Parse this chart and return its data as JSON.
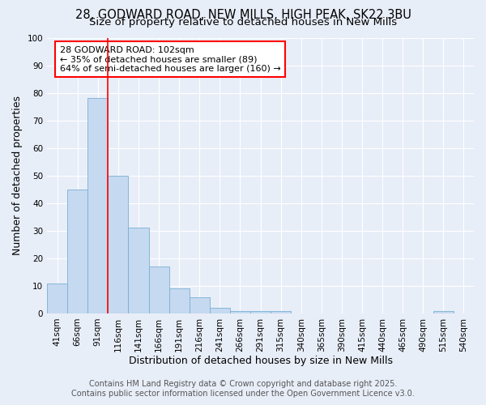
{
  "title": "28, GODWARD ROAD, NEW MILLS, HIGH PEAK, SK22 3BU",
  "subtitle": "Size of property relative to detached houses in New Mills",
  "xlabel": "Distribution of detached houses by size in New Mills",
  "ylabel": "Number of detached properties",
  "bins": [
    "41sqm",
    "66sqm",
    "91sqm",
    "116sqm",
    "141sqm",
    "166sqm",
    "191sqm",
    "216sqm",
    "241sqm",
    "266sqm",
    "291sqm",
    "315sqm",
    "340sqm",
    "365sqm",
    "390sqm",
    "415sqm",
    "440sqm",
    "465sqm",
    "490sqm",
    "515sqm",
    "540sqm"
  ],
  "values": [
    11,
    45,
    78,
    50,
    31,
    17,
    9,
    6,
    2,
    1,
    1,
    1,
    0,
    0,
    0,
    0,
    0,
    0,
    0,
    1,
    0
  ],
  "bar_color": "#c5d9f0",
  "bar_edge_color": "#7aafd4",
  "red_line_label": "28 GODWARD ROAD: 102sqm",
  "annotation_line2": "← 35% of detached houses are smaller (89)",
  "annotation_line3": "64% of semi-detached houses are larger (160) →",
  "annotation_box_color": "white",
  "annotation_box_edge": "red",
  "vline_color": "red",
  "ylim": [
    0,
    100
  ],
  "yticks": [
    0,
    10,
    20,
    30,
    40,
    50,
    60,
    70,
    80,
    90,
    100
  ],
  "background_color": "#e8eef8",
  "grid_color": "#ffffff",
  "footer_line1": "Contains HM Land Registry data © Crown copyright and database right 2025.",
  "footer_line2": "Contains public sector information licensed under the Open Government Licence v3.0.",
  "title_fontsize": 10.5,
  "subtitle_fontsize": 9.5,
  "axis_label_fontsize": 9,
  "tick_fontsize": 7.5,
  "footer_fontsize": 7,
  "annotation_fontsize": 8
}
